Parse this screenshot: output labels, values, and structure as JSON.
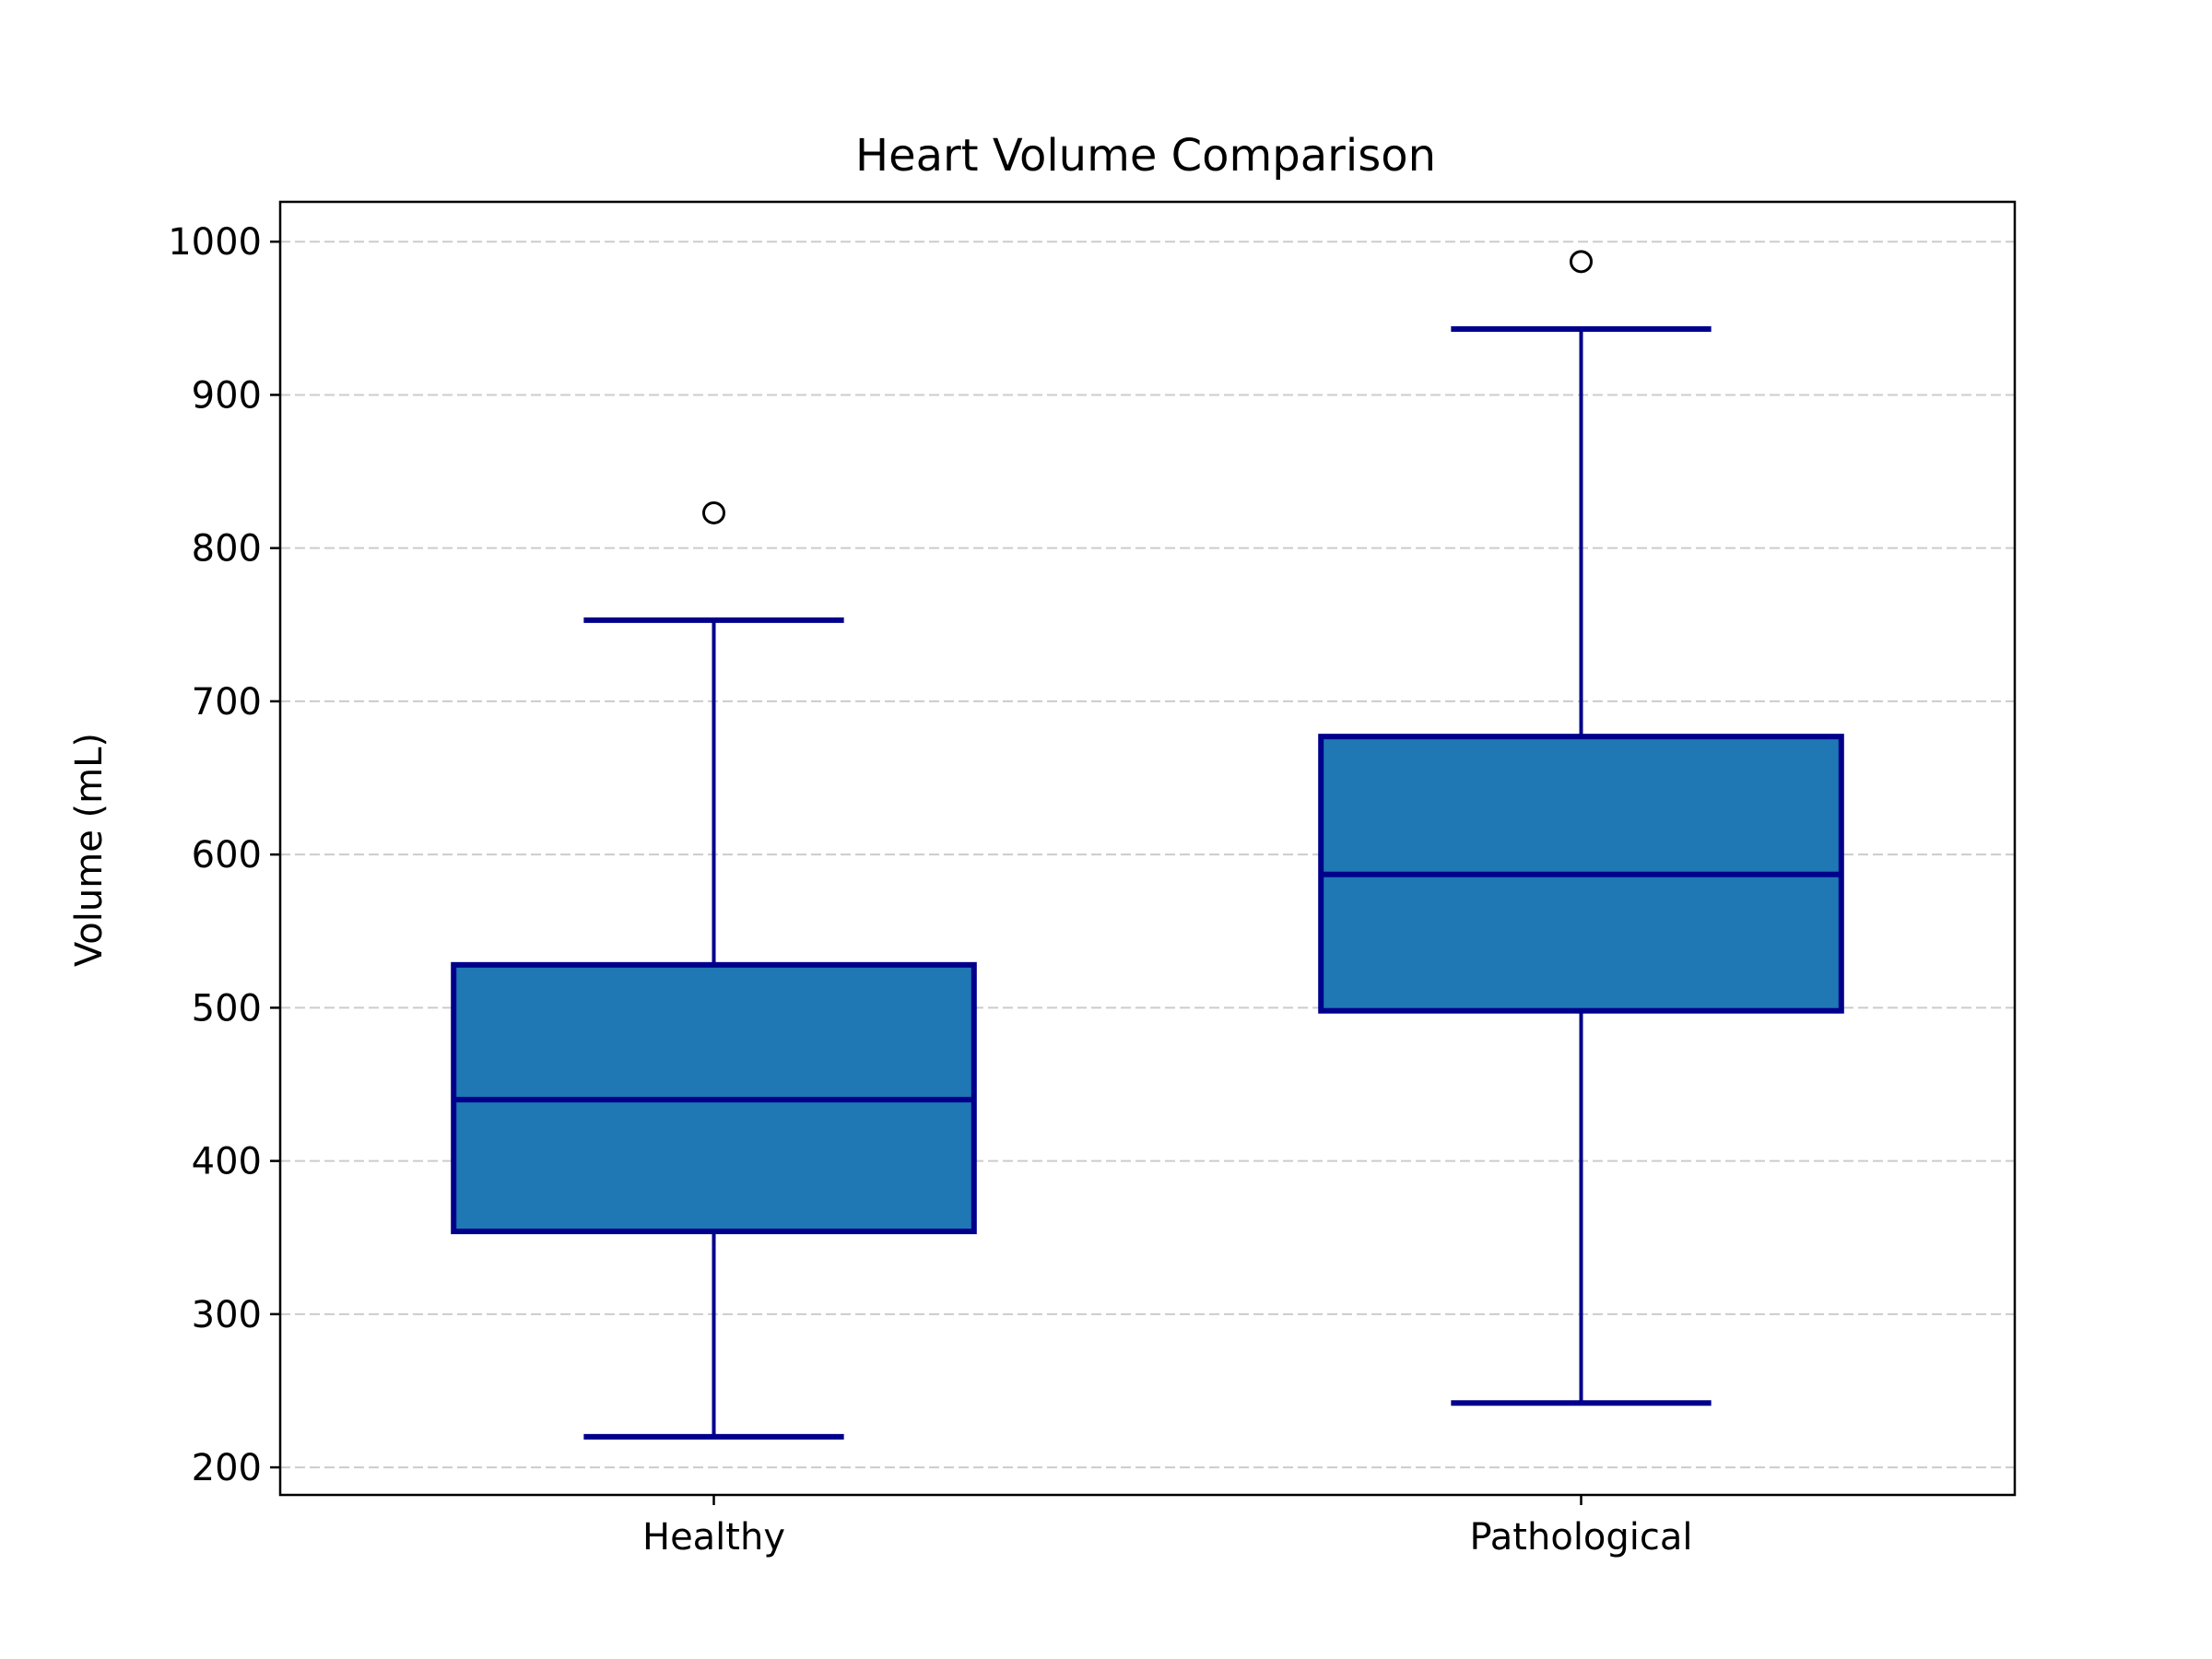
{
  "chart_data": {
    "type": "box",
    "title": "Heart Volume Comparison",
    "xlabel": "",
    "ylabel": "Volume (mL)",
    "categories": [
      "Healthy",
      "Pathological"
    ],
    "boxes": [
      {
        "category": "Healthy",
        "whisker_low": 220,
        "q1": 354,
        "median": 440,
        "q3": 528,
        "whisker_high": 753,
        "outliers": [
          823
        ]
      },
      {
        "category": "Pathological",
        "whisker_low": 242,
        "q1": 498,
        "median": 587,
        "q3": 677,
        "whisker_high": 943,
        "outliers": [
          987
        ]
      }
    ],
    "ylim": [
      182,
      1026
    ],
    "yticks": [
      200,
      300,
      400,
      500,
      600,
      700,
      800,
      900,
      1000
    ],
    "ytick_labels": [
      "200",
      "300",
      "400",
      "500",
      "600",
      "700",
      "800",
      "900",
      "1000"
    ],
    "grid": {
      "y": true,
      "x": false,
      "style": "dashed"
    },
    "colors": {
      "box_fill": "#1f77b4",
      "box_edge": "#00008b",
      "grid": "#cccccc",
      "outlier_edge": "#000000"
    }
  }
}
